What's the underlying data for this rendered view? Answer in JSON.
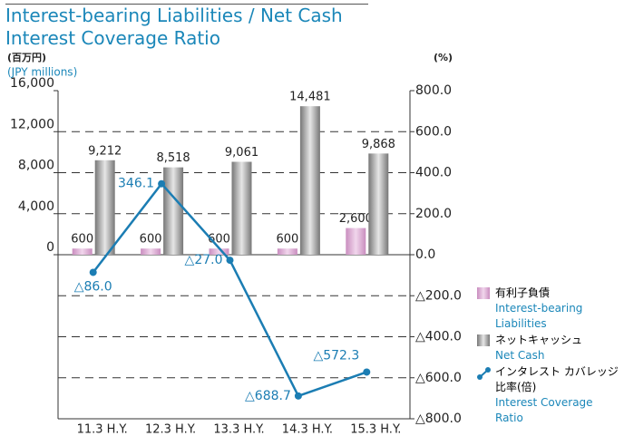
{
  "chart_data": {
    "type": "bar-line",
    "title": [
      "Interest-bearing Liabilities / Net Cash",
      "Interest Coverage Ratio"
    ],
    "ylabel": [
      "(百万円)",
      "(JPY millions)"
    ],
    "y2label": "(%)",
    "categories": [
      "11.3 H.Y.",
      "12.3 H.Y.",
      "13.3 H.Y.",
      "14.3 H.Y.",
      "15.3 H.Y."
    ],
    "ylim": [
      -16000,
      16000
    ],
    "yticks": [
      0,
      {
        "value": 4000,
        "label": "4,000"
      },
      {
        "value": 8000,
        "label": "8,000"
      },
      {
        "value": 12000,
        "label": "12,000"
      },
      {
        "value": 16000,
        "label": "16,000"
      }
    ],
    "y2lim": [
      -800,
      800
    ],
    "y2ticks": [
      {
        "value": 800,
        "label": "800.0"
      },
      {
        "value": 600,
        "label": "600.0"
      },
      {
        "value": 400,
        "label": "400.0"
      },
      {
        "value": 200,
        "label": "200.0"
      },
      {
        "value": 0,
        "label": "0.0"
      },
      {
        "value": -200,
        "label": "△200.0"
      },
      {
        "value": -400,
        "label": "△400.0"
      },
      {
        "value": -600,
        "label": "△600.0"
      },
      {
        "value": -800,
        "label": "△800.0"
      }
    ],
    "grid": true,
    "series": [
      {
        "name": "有利子負債",
        "name_en": "Interest-bearing Liabilities",
        "type": "bar",
        "color": "#d9a9cf",
        "values": [
          600,
          600,
          600,
          600,
          2600
        ],
        "value_labels": [
          "600",
          "600",
          "600",
          "600",
          "2,600"
        ]
      },
      {
        "name": "ネットキャッシュ",
        "name_en": "Net Cash",
        "type": "bar",
        "color": "#a0a0a0",
        "values": [
          9212,
          8518,
          9061,
          14481,
          9868
        ],
        "value_labels": [
          "9,212",
          "8,518",
          "9,061",
          "14,481",
          "9,868"
        ]
      },
      {
        "name": "インタレスト カバレッジ比率(倍)",
        "name_en": "Interest Coverage Ratio",
        "type": "line",
        "axis": "y2",
        "color": "#1b7db3",
        "values": [
          -86.0,
          346.1,
          -27.0,
          -688.7,
          -572.3
        ],
        "value_labels": [
          "△86.0",
          "346.1",
          "△27.0",
          "△688.7",
          "△572.3"
        ]
      }
    ]
  }
}
